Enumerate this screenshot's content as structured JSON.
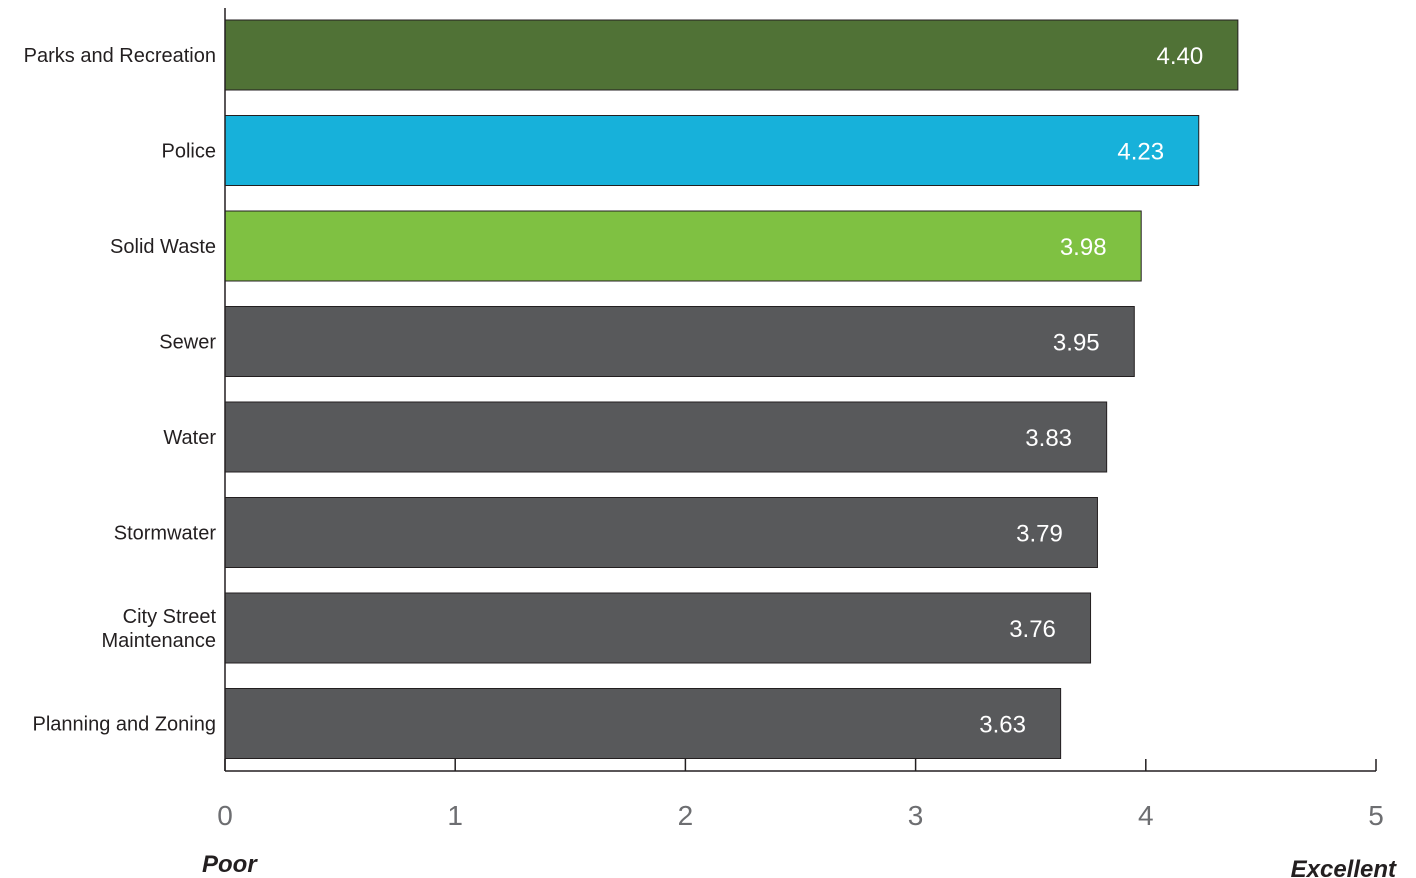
{
  "chart_data": {
    "type": "bar",
    "orientation": "horizontal",
    "categories": [
      "Parks and Recreation",
      "Police",
      "Solid Waste",
      "Sewer",
      "Water",
      "Stormwater",
      "City Street Maintenance",
      "Planning and Zoning"
    ],
    "category_lines": [
      [
        "Parks and Recreation"
      ],
      [
        "Police"
      ],
      [
        "Solid Waste"
      ],
      [
        "Sewer"
      ],
      [
        "Water"
      ],
      [
        "Stormwater"
      ],
      [
        "City Street",
        "Maintenance"
      ],
      [
        "Planning and Zoning"
      ]
    ],
    "values": [
      4.4,
      4.23,
      3.98,
      3.95,
      3.83,
      3.79,
      3.76,
      3.63
    ],
    "value_labels": [
      "4.40",
      "4.23",
      "3.98",
      "3.95",
      "3.83",
      "3.79",
      "3.76",
      "3.63"
    ],
    "bar_colors": [
      "#507236",
      "#17b1da",
      "#7fc142",
      "#58595b",
      "#58595b",
      "#58595b",
      "#58595b",
      "#58595b"
    ],
    "xlim": [
      0,
      5
    ],
    "x_ticks": [
      0,
      1,
      2,
      3,
      4,
      5
    ],
    "x_tick_labels": [
      "0",
      "1",
      "2",
      "3",
      "4",
      "5"
    ],
    "scale_low_label": "Poor",
    "scale_high_label": "Excellent",
    "title": "",
    "xlabel": "",
    "ylabel": "",
    "grid": false,
    "legend": "none"
  }
}
